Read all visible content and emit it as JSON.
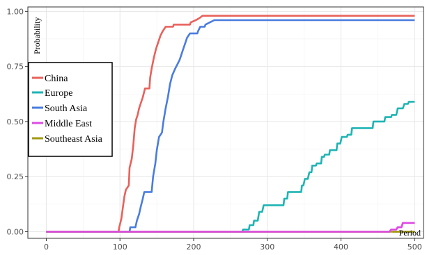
{
  "chart_data": {
    "type": "line",
    "title": "",
    "xlabel": "Period",
    "ylabel": "Probability",
    "xlim": [
      -25,
      512
    ],
    "ylim": [
      -0.03,
      1.02
    ],
    "x_ticks": [
      0,
      100,
      200,
      300,
      400,
      500
    ],
    "y_ticks": [
      0.0,
      0.25,
      0.5,
      0.75,
      1.0
    ],
    "y_tick_labels": [
      "0.00",
      "0.25",
      "0.50",
      "0.75",
      "1.00"
    ],
    "grid": true,
    "legend_position": "left",
    "series": [
      {
        "name": "China",
        "color": "#E8615B",
        "points": [
          [
            0,
            0
          ],
          [
            98,
            0
          ],
          [
            99,
            0.02
          ],
          [
            102,
            0.06
          ],
          [
            104,
            0.11
          ],
          [
            106,
            0.16
          ],
          [
            108,
            0.19
          ],
          [
            112,
            0.21
          ],
          [
            113,
            0.29
          ],
          [
            116,
            0.33
          ],
          [
            118,
            0.39
          ],
          [
            120,
            0.47
          ],
          [
            122,
            0.51
          ],
          [
            124,
            0.53
          ],
          [
            126,
            0.56
          ],
          [
            128,
            0.58
          ],
          [
            131,
            0.61
          ],
          [
            134,
            0.65
          ],
          [
            140,
            0.65
          ],
          [
            141,
            0.7
          ],
          [
            143,
            0.74
          ],
          [
            146,
            0.79
          ],
          [
            149,
            0.83
          ],
          [
            152,
            0.86
          ],
          [
            155,
            0.89
          ],
          [
            158,
            0.91
          ],
          [
            162,
            0.93
          ],
          [
            172,
            0.93
          ],
          [
            173,
            0.94
          ],
          [
            195,
            0.94
          ],
          [
            196,
            0.95
          ],
          [
            203,
            0.96
          ],
          [
            208,
            0.97
          ],
          [
            212,
            0.98
          ],
          [
            500,
            0.98
          ]
        ]
      },
      {
        "name": "Europe",
        "color": "#1FB4B4",
        "points": [
          [
            0,
            0
          ],
          [
            266,
            0
          ],
          [
            267,
            0.01
          ],
          [
            275,
            0.01
          ],
          [
            276,
            0.03
          ],
          [
            281,
            0.03
          ],
          [
            282,
            0.05
          ],
          [
            287,
            0.05
          ],
          [
            289,
            0.09
          ],
          [
            293,
            0.09
          ],
          [
            295,
            0.12
          ],
          [
            322,
            0.12
          ],
          [
            323,
            0.15
          ],
          [
            327,
            0.15
          ],
          [
            328,
            0.18
          ],
          [
            346,
            0.18
          ],
          [
            347,
            0.21
          ],
          [
            349,
            0.21
          ],
          [
            351,
            0.24
          ],
          [
            355,
            0.24
          ],
          [
            357,
            0.27
          ],
          [
            360,
            0.27
          ],
          [
            361,
            0.3
          ],
          [
            366,
            0.3
          ],
          [
            367,
            0.31
          ],
          [
            373,
            0.31
          ],
          [
            374,
            0.34
          ],
          [
            377,
            0.34
          ],
          [
            378,
            0.35
          ],
          [
            384,
            0.35
          ],
          [
            385,
            0.37
          ],
          [
            394,
            0.37
          ],
          [
            395,
            0.4
          ],
          [
            399,
            0.4
          ],
          [
            401,
            0.43
          ],
          [
            408,
            0.43
          ],
          [
            409,
            0.44
          ],
          [
            414,
            0.44
          ],
          [
            415,
            0.47
          ],
          [
            443,
            0.47
          ],
          [
            444,
            0.5
          ],
          [
            459,
            0.5
          ],
          [
            460,
            0.52
          ],
          [
            468,
            0.52
          ],
          [
            469,
            0.53
          ],
          [
            475,
            0.53
          ],
          [
            477,
            0.56
          ],
          [
            484,
            0.56
          ],
          [
            486,
            0.58
          ],
          [
            491,
            0.58
          ],
          [
            492,
            0.59
          ],
          [
            500,
            0.59
          ]
        ]
      },
      {
        "name": "South Asia",
        "color": "#4A7CE0",
        "points": [
          [
            0,
            0
          ],
          [
            113,
            0
          ],
          [
            114,
            0.02
          ],
          [
            121,
            0.02
          ],
          [
            123,
            0.05
          ],
          [
            126,
            0.08
          ],
          [
            128,
            0.11
          ],
          [
            131,
            0.15
          ],
          [
            133,
            0.18
          ],
          [
            143,
            0.18
          ],
          [
            145,
            0.25
          ],
          [
            148,
            0.31
          ],
          [
            150,
            0.37
          ],
          [
            153,
            0.43
          ],
          [
            157,
            0.45
          ],
          [
            159,
            0.5
          ],
          [
            162,
            0.56
          ],
          [
            165,
            0.61
          ],
          [
            168,
            0.67
          ],
          [
            171,
            0.71
          ],
          [
            175,
            0.74
          ],
          [
            178,
            0.76
          ],
          [
            181,
            0.78
          ],
          [
            183,
            0.8
          ],
          [
            185,
            0.82
          ],
          [
            188,
            0.85
          ],
          [
            191,
            0.88
          ],
          [
            195,
            0.9
          ],
          [
            205,
            0.9
          ],
          [
            206,
            0.91
          ],
          [
            209,
            0.93
          ],
          [
            215,
            0.93
          ],
          [
            216,
            0.94
          ],
          [
            222,
            0.95
          ],
          [
            228,
            0.96
          ],
          [
            500,
            0.96
          ]
        ]
      },
      {
        "name": "Middle East",
        "color": "#DD4CE3",
        "points": [
          [
            0,
            0
          ],
          [
            466,
            0
          ],
          [
            468,
            0.01
          ],
          [
            475,
            0.01
          ],
          [
            477,
            0.02
          ],
          [
            482,
            0.02
          ],
          [
            484,
            0.04
          ],
          [
            500,
            0.04
          ]
        ]
      },
      {
        "name": "Southeast Asia",
        "color": "#A29A10",
        "points": [
          [
            0,
            0
          ],
          [
            500,
            0
          ]
        ]
      }
    ]
  }
}
